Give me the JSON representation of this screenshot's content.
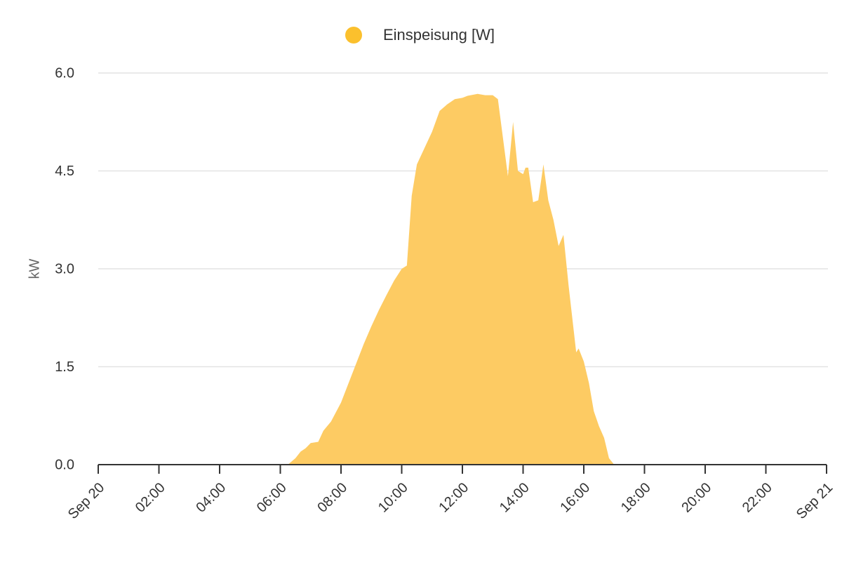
{
  "chart_data": {
    "type": "area",
    "ylabel": "kW",
    "xlabel": "",
    "ylim": [
      0,
      6
    ],
    "y_ticks": [
      "0.0",
      "1.5",
      "3.0",
      "4.5",
      "6.0"
    ],
    "y_tick_values": [
      0,
      1.5,
      3.0,
      4.5,
      6.0
    ],
    "x_range_hours": [
      0,
      24
    ],
    "x_ticks": [
      "Sep 20",
      "02:00",
      "04:00",
      "06:00",
      "08:00",
      "10:00",
      "12:00",
      "14:00",
      "16:00",
      "18:00",
      "20:00",
      "22:00",
      "Sep 21"
    ],
    "x_tick_hours": [
      0,
      2,
      4,
      6,
      8,
      10,
      12,
      14,
      16,
      18,
      20,
      22,
      24
    ],
    "grid": true,
    "legend_position": "top-center",
    "series": [
      {
        "name": "Einspeisung [W]",
        "color": "#fbc02d",
        "fill_color": "#fdcb63",
        "x": [
          6.0,
          6.25,
          6.5,
          6.67,
          6.83,
          7.0,
          7.25,
          7.42,
          7.67,
          8.0,
          8.25,
          8.5,
          8.75,
          9.0,
          9.25,
          9.5,
          9.75,
          10.0,
          10.17,
          10.33,
          10.5,
          10.75,
          11.0,
          11.25,
          11.5,
          11.75,
          12.0,
          12.17,
          12.5,
          12.75,
          13.0,
          13.17,
          13.5,
          13.67,
          13.83,
          14.0,
          14.08,
          14.17,
          14.33,
          14.5,
          14.67,
          14.83,
          15.0,
          15.17,
          15.33,
          15.5,
          15.75,
          15.83,
          16.0,
          16.17,
          16.33,
          16.5,
          16.67,
          16.83,
          17.0,
          17.17,
          17.25,
          17.33,
          17.5,
          18.0,
          24.0
        ],
        "values": [
          0,
          0,
          0.1,
          0.2,
          0.25,
          0.33,
          0.35,
          0.52,
          0.66,
          0.95,
          1.25,
          1.55,
          1.85,
          2.12,
          2.37,
          2.6,
          2.82,
          3.0,
          3.05,
          4.12,
          4.6,
          4.85,
          5.1,
          5.42,
          5.52,
          5.6,
          5.62,
          5.65,
          5.68,
          5.66,
          5.66,
          5.6,
          4.42,
          5.25,
          4.5,
          4.45,
          4.55,
          4.55,
          4.02,
          4.05,
          4.6,
          4.05,
          3.75,
          3.35,
          3.52,
          2.74,
          1.72,
          1.78,
          1.58,
          1.25,
          0.82,
          0.59,
          0.41,
          0.1,
          0.0,
          0,
          0,
          0,
          0,
          0,
          0
        ]
      }
    ]
  }
}
